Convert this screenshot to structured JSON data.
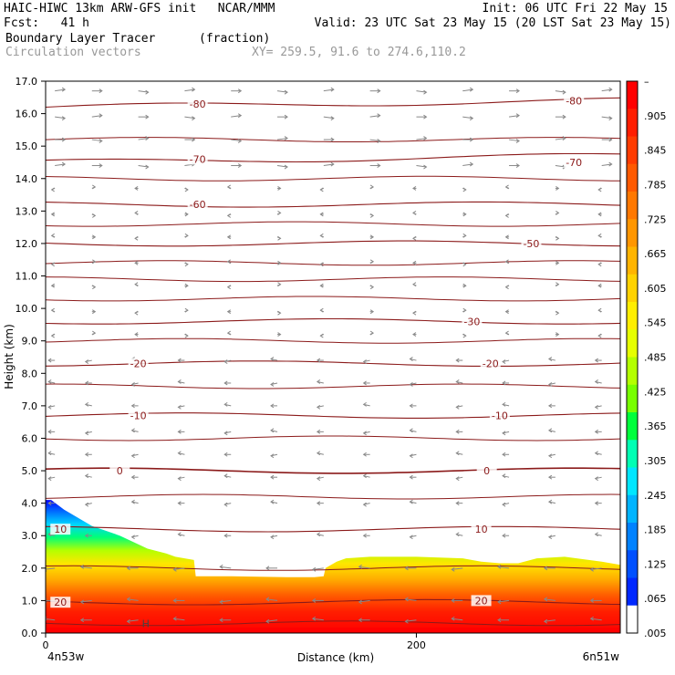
{
  "header": {
    "line1_left": "HAIC-HIWC 13km ARW-GFS init   NCAR/MMM",
    "line1_right": "Init: 06 UTC Fri 22 May 15",
    "line2_left": "Fcst:   41 h",
    "line2_right": "Valid: 23 UTC Sat 23 May 15 (20 LST Sat 23 May 15)",
    "line3_left": "Boundary Layer Tracer",
    "line3_units": "(fraction)",
    "line4_left": "Circulation vectors",
    "line4_xy": "XY= 259.5, 91.6 to 274.6,110.2"
  },
  "chart_data": {
    "type": "heatmap",
    "title": "Boundary Layer Tracer",
    "units": "(fraction)",
    "xlabel": "Distance (km)",
    "ylabel": "Height (km)",
    "xlim": [
      0,
      310
    ],
    "ylim": [
      0,
      17
    ],
    "x_ticks": [
      0,
      200
    ],
    "x_tick_labels": [
      "0",
      "200"
    ],
    "x_end_labels": [
      "4n53w",
      "6n51w"
    ],
    "y_ticks": [
      0,
      1,
      2,
      3,
      4,
      5,
      6,
      7,
      8,
      9,
      10,
      11,
      12,
      13,
      14,
      15,
      16,
      17
    ],
    "y_tick_labels": [
      "0.0",
      "1.0",
      "2.0",
      "3.0",
      "4.0",
      "5.0",
      "6.0",
      "7.0",
      "8.0",
      "9.0",
      "10.0",
      "11.0",
      "12.0",
      "13.0",
      "14.0",
      "15.0",
      "16.0",
      "17.0"
    ],
    "colorbar": {
      "labels": [
        "–",
        ".905",
        ".845",
        ".785",
        ".725",
        ".665",
        ".605",
        ".545",
        ".485",
        ".425",
        ".365",
        ".305",
        ".245",
        ".185",
        ".125",
        ".065",
        ".005"
      ],
      "colors": [
        "#ff0000",
        "#ff1e00",
        "#ff3c00",
        "#ff5a00",
        "#ff7800",
        "#ff9600",
        "#ffb400",
        "#ffd200",
        "#ffee00",
        "#e6ff00",
        "#b4ff00",
        "#78ff00",
        "#00ff3c",
        "#00ffb4",
        "#00e6ff",
        "#00b4ff",
        "#0082ff",
        "#0050ff",
        "#0028ff",
        "#ffffff"
      ]
    },
    "tracer_top_profile": {
      "x": [
        0,
        3,
        10,
        25,
        40,
        55,
        65,
        70,
        75,
        80,
        81,
        100,
        130,
        145,
        150,
        151,
        157,
        162,
        175,
        200,
        225,
        235,
        245,
        255,
        265,
        280,
        300,
        310
      ],
      "y": [
        4.1,
        4.1,
        3.8,
        3.3,
        3.0,
        2.6,
        2.45,
        2.35,
        2.3,
        2.25,
        1.75,
        1.75,
        1.72,
        1.72,
        1.75,
        2.0,
        2.2,
        2.3,
        2.35,
        2.35,
        2.3,
        2.2,
        2.15,
        2.15,
        2.3,
        2.35,
        2.2,
        2.1
      ]
    },
    "temperature_contours_C": [
      {
        "label": "-80",
        "level": 16.3
      },
      {
        "label": "-70",
        "level": 14.6
      },
      {
        "label": "-60",
        "level": 13.2
      },
      {
        "label": "-50",
        "level": 12.0
      },
      {
        "label": "-30",
        "level": 9.6
      },
      {
        "label": "-20",
        "level": 8.3
      },
      {
        "label": "-10",
        "level": 6.7
      },
      {
        "label": "0",
        "level": 5.0
      },
      {
        "label": "10",
        "level": 3.2
      },
      {
        "label": "20",
        "level": 0.95
      }
    ],
    "contour_labels": [
      {
        "text": "-80",
        "x": 82,
        "y": 16.3
      },
      {
        "text": "-80",
        "x": 285,
        "y": 16.4
      },
      {
        "text": "-70",
        "x": 82,
        "y": 14.6
      },
      {
        "text": "-70",
        "x": 285,
        "y": 14.5
      },
      {
        "text": "-60",
        "x": 82,
        "y": 13.2
      },
      {
        "text": "-50",
        "x": 262,
        "y": 12.0
      },
      {
        "text": "-30",
        "x": 230,
        "y": 9.6
      },
      {
        "text": "-20",
        "x": 50,
        "y": 8.3
      },
      {
        "text": "-20",
        "x": 240,
        "y": 8.3
      },
      {
        "text": "-10",
        "x": 50,
        "y": 6.7
      },
      {
        "text": "-10",
        "x": 245,
        "y": 6.7
      },
      {
        "text": "0",
        "x": 40,
        "y": 5.0
      },
      {
        "text": "0",
        "x": 238,
        "y": 5.0
      },
      {
        "text": "10",
        "x": 8,
        "y": 3.2
      },
      {
        "text": "10",
        "x": 235,
        "y": 3.2
      },
      {
        "text": "20",
        "x": 8,
        "y": 0.95
      },
      {
        "text": "20",
        "x": 235,
        "y": 1.0
      }
    ],
    "marker_label": {
      "text": "H",
      "x": 52,
      "y": 0.3
    },
    "vector_columns_km": [
      5,
      25,
      50,
      75,
      100,
      125,
      150,
      175,
      200,
      225,
      250,
      275,
      300
    ],
    "vector_levels_km": [
      0.4,
      1.0,
      2.0,
      3.0,
      4.0,
      4.8,
      5.5,
      6.2,
      7.0,
      7.7,
      8.4,
      9.2,
      9.9,
      10.7,
      11.4,
      12.2,
      12.9,
      13.7,
      14.4,
      15.2,
      15.9,
      16.7
    ]
  }
}
